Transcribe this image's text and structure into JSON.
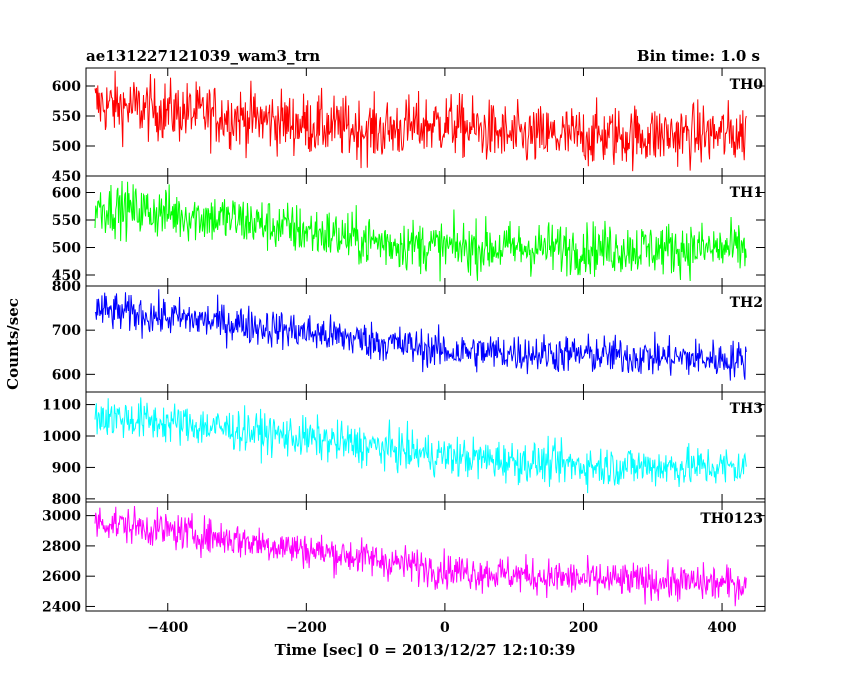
{
  "chart_data": {
    "type": "line",
    "title": "ae131227121039_wam3_trn",
    "subtitle": "Bin time: 1.0 s",
    "xlabel": "Time [sec] 0 = 2013/12/27 12:10:39",
    "ylabel": "Counts/sec",
    "xlim": [
      -518,
      462
    ],
    "x_ticks": [
      -400,
      -200,
      0,
      200,
      400
    ],
    "x_tick_labels": [
      "−400",
      "−200",
      "0",
      "200",
      "400"
    ],
    "x_start": -505,
    "x_end": 435,
    "bin_time": 1.0,
    "grid": false,
    "panels": [
      {
        "label": "TH0",
        "color": "#ff0000",
        "ylim": [
          450,
          630
        ],
        "y_ticks": [
          450,
          500,
          550,
          600
        ],
        "y_tick_labels": [
          "450",
          "500",
          "550",
          "600"
        ],
        "trend": [
          [
            -505,
            570
          ],
          [
            -300,
            548
          ],
          [
            -100,
            525
          ],
          [
            0,
            538
          ],
          [
            100,
            515
          ],
          [
            435,
            520
          ]
        ],
        "noise": 26
      },
      {
        "label": "TH1",
        "color": "#00ff00",
        "ylim": [
          430,
          630
        ],
        "y_ticks": [
          450,
          500,
          550,
          600
        ],
        "y_tick_labels": [
          "450",
          "500",
          "550",
          "600"
        ],
        "trend": [
          [
            -505,
            575
          ],
          [
            -300,
            550
          ],
          [
            -100,
            510
          ],
          [
            0,
            500
          ],
          [
            435,
            497
          ]
        ],
        "noise": 24
      },
      {
        "label": "TH2",
        "color": "#0000ff",
        "ylim": [
          560,
          800
        ],
        "y_ticks": [
          600,
          700,
          800
        ],
        "y_tick_labels": [
          "600",
          "700",
          "800"
        ],
        "trend": [
          [
            -505,
            745
          ],
          [
            -300,
            715
          ],
          [
            -100,
            675
          ],
          [
            0,
            652
          ],
          [
            200,
            645
          ],
          [
            435,
            632
          ]
        ],
        "noise": 22
      },
      {
        "label": "TH3",
        "color": "#00ffff",
        "ylim": [
          790,
          1140
        ],
        "y_ticks": [
          800,
          900,
          1000,
          1100
        ],
        "y_tick_labels": [
          "800",
          "900",
          "1000",
          "1100"
        ],
        "trend": [
          [
            -505,
            1065
          ],
          [
            -300,
            1020
          ],
          [
            -100,
            965
          ],
          [
            0,
            935
          ],
          [
            200,
            905
          ],
          [
            435,
            900
          ]
        ],
        "noise": 33
      },
      {
        "label": "TH0123",
        "color": "#ff00ff",
        "ylim": [
          2370,
          3090
        ],
        "y_ticks": [
          2400,
          2600,
          2800,
          3000
        ],
        "y_tick_labels": [
          "2400",
          "2600",
          "2800",
          "3000"
        ],
        "trend": [
          [
            -505,
            2965
          ],
          [
            -300,
            2840
          ],
          [
            -100,
            2710
          ],
          [
            0,
            2640
          ],
          [
            200,
            2580
          ],
          [
            435,
            2545
          ]
        ],
        "noise": 60
      }
    ]
  }
}
